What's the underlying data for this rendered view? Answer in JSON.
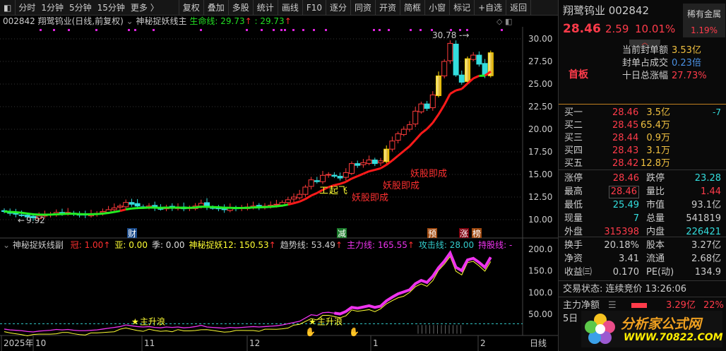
{
  "toolbar": {
    "periods": [
      "分时",
      "1分钟",
      "5分钟",
      "15分钟",
      "更多 〉"
    ],
    "buttons": [
      "复权",
      "叠加",
      "多股",
      "统计",
      "画线",
      "F10",
      "逐分",
      "同资",
      "开资",
      "简框",
      "小窗",
      "标记",
      "+自选",
      "返回"
    ]
  },
  "info": {
    "title": "002842 翔鹭钨业(日线,前复权)",
    "indicator": "神秘捉妖线主",
    "life_label": "生命线: 29.73",
    "second_label": ": 29.73"
  },
  "sub": {
    "name": "神秘捉妖线副",
    "items": [
      {
        "t": "冠: 1.00",
        "c": "#ff3030",
        "arrow": true
      },
      {
        "t": "亚: 0.00",
        "c": "#ffff33"
      },
      {
        "t": "季: 0.00",
        "c": "#dddddd"
      },
      {
        "t": "神秘捉妖12: 150.53",
        "c": "#ffff33",
        "arrow": true
      },
      {
        "t": "趋势线: 53.49",
        "c": "#cccccc",
        "arrow": true
      },
      {
        "t": "主力线: 165.55",
        "c": "#ee33ee",
        "arrow": true
      },
      {
        "t": "攻击线: 28.00",
        "c": "#33cccc"
      },
      {
        "t": "持股线: -",
        "c": "#ee33ee"
      }
    ]
  },
  "chart_data": {
    "type": "candlestick",
    "y_ticks": [
      "30.00",
      "27.50",
      "25.00",
      "22.50",
      "20.00",
      "17.50",
      "15.00",
      "12.50",
      "10.00"
    ],
    "ylim": [
      10,
      30
    ],
    "close": [
      10.9,
      10.7,
      10.6,
      10.5,
      10.3,
      10.2,
      10.4,
      10.5,
      10.6,
      10.8,
      10.7,
      10.8,
      10.6,
      10.5,
      10.5,
      10.6,
      10.7,
      10.9,
      11.1,
      11.3,
      11.5,
      11.9,
      11.7,
      11.5,
      11.4,
      11.5,
      11.3,
      11.2,
      11.4,
      11.3,
      11.4,
      11.2,
      11.3,
      11.5,
      11.8,
      11.4,
      11.3,
      11.2,
      11.1,
      11.3,
      11.2,
      11.3,
      11.4,
      11.5,
      11.4,
      11.5,
      11.6,
      11.7,
      11.9,
      12.2,
      12.5,
      12.8,
      13.6,
      14.4,
      14.2,
      14.9,
      15.0,
      14.8,
      14.6,
      15.2,
      16.2,
      16.0,
      16.3,
      16.6,
      16.2,
      16.5,
      17.8,
      18.7,
      19.5,
      20.0,
      20.5,
      22.0,
      22.8,
      22.3,
      23.8,
      25.9,
      27.5,
      29.5,
      26.0,
      25.2,
      27.8,
      28.2,
      27.2,
      26.0,
      28.46
    ],
    "high_label": "30.78",
    "low_label": "9.92",
    "annotations": [
      "起飞",
      "妖股即成",
      "妖股即成",
      "妖股即成"
    ],
    "markers": [
      "财",
      "减",
      "预",
      "涨",
      "榜"
    ],
    "x_ticks": [
      "2025年",
      "10",
      "11",
      "12",
      "1",
      "2"
    ],
    "period_label": "日线",
    "sub_y_ticks": [
      "200.0",
      "150.0",
      "100.0",
      "50.00"
    ],
    "sub_ylim": [
      0,
      200
    ],
    "sub_annotations": [
      "主升浪",
      "主升浪"
    ]
  },
  "quote": {
    "name_code": "翔鹭钨业 002842",
    "price": "28.46",
    "change": "2.59",
    "pct": "10.01%",
    "sector": "稀有金属",
    "sector_pct": "1.19%",
    "board": "首板",
    "seal": [
      {
        "k": "当前封单额",
        "v": "3.53亿",
        "c": "gold"
      },
      {
        "k": "封单占成交",
        "v": "0.23倍",
        "c": "blue"
      },
      {
        "k": "十日总涨幅",
        "v": "27.73%",
        "c": "red"
      }
    ],
    "bids": [
      {
        "k": "买一",
        "p": "28.46",
        "v": "3.5亿",
        "x": "-7"
      },
      {
        "k": "买二",
        "p": "28.45",
        "v": "65.4万"
      },
      {
        "k": "买三",
        "p": "28.44",
        "v": "0.9万"
      },
      {
        "k": "买四",
        "p": "28.43",
        "v": "3.1万"
      },
      {
        "k": "买五",
        "p": "28.42",
        "v": "12.8万"
      }
    ],
    "stats": [
      [
        "涨停",
        "28.46",
        "red",
        "跌停",
        "23.28",
        "cyn"
      ],
      [
        "最高",
        "28.46",
        "red",
        "量比",
        "1.44",
        "red"
      ],
      [
        "最低",
        "25.49",
        "cyn",
        "市值",
        "93.1亿",
        "lbl"
      ],
      [
        "现量",
        "7",
        "cyn",
        "总量",
        "541819",
        "lbl"
      ],
      [
        "外盘",
        "315398",
        "red",
        "内盘",
        "226421",
        "cyn"
      ]
    ],
    "stats2": [
      [
        "换手",
        "20.18%",
        "股本",
        "3.27亿"
      ],
      [
        "净资",
        "3.41",
        "流通",
        "2.68亿"
      ],
      [
        "收益㈢",
        "0.170",
        "PE(动)",
        "134.9"
      ]
    ],
    "status": "交易状态: 连续竞价 13:26:06",
    "main_net_label": "主力净额",
    "main_net_value": "3.29亿",
    "main_net_pct": "22%",
    "five_day": "5日",
    "logo_text": "分析家公式网",
    "logo_url": "WWW.70822.COM"
  }
}
